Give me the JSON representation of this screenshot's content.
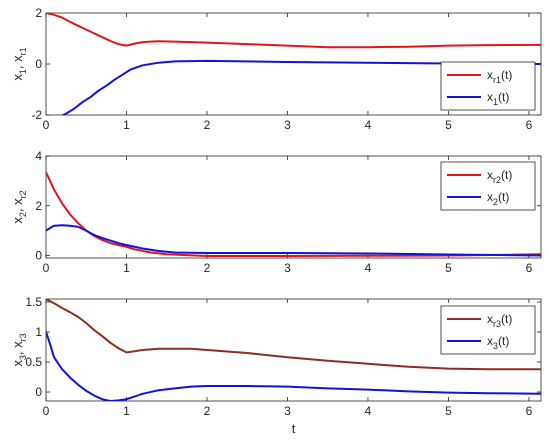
{
  "chart_data": [
    {
      "type": "line",
      "xlim": [
        0,
        6.15
      ],
      "ylim": [
        -2,
        2
      ],
      "xticks": [
        "0",
        "1",
        "2",
        "3",
        "4",
        "5",
        "6"
      ],
      "yticks": [
        "-2",
        "0",
        "2"
      ],
      "ylabel_parts": [
        "x",
        "1",
        ", x",
        "r1"
      ],
      "xlabel": "",
      "grid": false,
      "legend": "bottom-right",
      "series": [
        {
          "name_parts": [
            "x",
            "r1",
            "(t)"
          ],
          "color": "#e0151c",
          "x": [
            0,
            0.1,
            0.2,
            0.3,
            0.4,
            0.5,
            0.6,
            0.7,
            0.8,
            0.9,
            1.0,
            1.1,
            1.2,
            1.3,
            1.4,
            1.6,
            1.8,
            2.0,
            2.5,
            3.0,
            3.5,
            4.0,
            4.5,
            5.0,
            5.5,
            6.15
          ],
          "y": [
            2.0,
            1.93,
            1.82,
            1.65,
            1.5,
            1.35,
            1.2,
            1.05,
            0.9,
            0.78,
            0.72,
            0.8,
            0.86,
            0.88,
            0.89,
            0.88,
            0.86,
            0.84,
            0.78,
            0.72,
            0.66,
            0.66,
            0.68,
            0.72,
            0.74,
            0.75
          ]
        },
        {
          "name_parts": [
            "x",
            "1",
            "(t)"
          ],
          "color": "#1014d6",
          "x": [
            0,
            0.08,
            0.15,
            0.25,
            0.35,
            0.45,
            0.55,
            0.65,
            0.75,
            0.85,
            0.95,
            1.05,
            1.2,
            1.4,
            1.6,
            2.0,
            3.0,
            4.0,
            5.0,
            6.15
          ],
          "y": [
            -3.0,
            -2.4,
            -2.1,
            -1.95,
            -1.75,
            -1.5,
            -1.3,
            -1.05,
            -0.85,
            -0.62,
            -0.42,
            -0.22,
            -0.05,
            0.05,
            0.1,
            0.12,
            0.08,
            0.05,
            0.02,
            0.0
          ]
        }
      ]
    },
    {
      "type": "line",
      "xlim": [
        0,
        6.15
      ],
      "ylim": [
        -0.1,
        4
      ],
      "xticks": [
        "0",
        "1",
        "2",
        "3",
        "4",
        "5",
        "6"
      ],
      "yticks": [
        "0",
        "2",
        "4"
      ],
      "ylabel_parts": [
        "x",
        "2",
        ", x",
        "r2"
      ],
      "xlabel": "",
      "grid": false,
      "legend": "top-right",
      "series": [
        {
          "name_parts": [
            "x",
            "r2",
            "(t)"
          ],
          "color": "#e0151c",
          "x": [
            0,
            0.05,
            0.1,
            0.2,
            0.3,
            0.4,
            0.5,
            0.6,
            0.7,
            0.8,
            0.9,
            1.0,
            1.1,
            1.3,
            1.5,
            2.0,
            3.0,
            4.0,
            5.0,
            6.15
          ],
          "y": [
            3.35,
            3.0,
            2.65,
            2.1,
            1.65,
            1.3,
            1.0,
            0.78,
            0.62,
            0.5,
            0.42,
            0.35,
            0.25,
            0.12,
            0.05,
            -0.02,
            -0.02,
            -0.01,
            0.0,
            0.05
          ]
        },
        {
          "name_parts": [
            "x",
            "2",
            "(t)"
          ],
          "color": "#1014d6",
          "x": [
            0,
            0.1,
            0.2,
            0.3,
            0.4,
            0.5,
            0.6,
            0.7,
            0.8,
            0.9,
            1.0,
            1.2,
            1.4,
            1.6,
            2.0,
            3.0,
            4.0,
            5.0,
            6.15
          ],
          "y": [
            1.0,
            1.2,
            1.22,
            1.2,
            1.15,
            1.0,
            0.82,
            0.7,
            0.6,
            0.5,
            0.42,
            0.28,
            0.18,
            0.12,
            0.1,
            0.1,
            0.08,
            0.04,
            0.0
          ]
        }
      ]
    },
    {
      "type": "line",
      "xlim": [
        0,
        6.15
      ],
      "ylim": [
        -0.15,
        1.55
      ],
      "xticks": [
        "0",
        "1",
        "2",
        "3",
        "4",
        "5",
        "6"
      ],
      "yticks": [
        "0",
        "0.5",
        "1",
        "1.5"
      ],
      "ylabel_parts": [
        "x",
        "3",
        ", x",
        "r3"
      ],
      "xlabel": "t",
      "grid": false,
      "legend": "top-right",
      "series": [
        {
          "name_parts": [
            "x",
            "r3",
            "(t)"
          ],
          "color": "#8c2e1f",
          "x": [
            0,
            0.1,
            0.2,
            0.3,
            0.4,
            0.5,
            0.6,
            0.7,
            0.8,
            0.9,
            1.0,
            1.2,
            1.4,
            1.6,
            1.8,
            2.0,
            2.5,
            3.0,
            3.5,
            4.0,
            4.5,
            5.0,
            5.5,
            6.15
          ],
          "y": [
            1.55,
            1.48,
            1.4,
            1.33,
            1.25,
            1.15,
            1.03,
            0.93,
            0.82,
            0.73,
            0.66,
            0.7,
            0.72,
            0.72,
            0.72,
            0.7,
            0.65,
            0.58,
            0.52,
            0.47,
            0.42,
            0.39,
            0.38,
            0.38
          ]
        },
        {
          "name_parts": [
            "x",
            "3",
            "(t)"
          ],
          "color": "#1014d6",
          "x": [
            0,
            0.05,
            0.1,
            0.2,
            0.3,
            0.4,
            0.5,
            0.6,
            0.7,
            0.8,
            0.9,
            1.0,
            1.2,
            1.4,
            1.6,
            1.8,
            2.0,
            2.5,
            3.0,
            3.5,
            4.0,
            4.5,
            5.0,
            5.5,
            6.15
          ],
          "y": [
            1.0,
            0.8,
            0.58,
            0.38,
            0.24,
            0.12,
            0.02,
            -0.06,
            -0.12,
            -0.15,
            -0.14,
            -0.12,
            -0.03,
            0.03,
            0.06,
            0.09,
            0.1,
            0.1,
            0.09,
            0.06,
            0.04,
            0.01,
            -0.01,
            -0.02,
            -0.03
          ]
        }
      ]
    }
  ]
}
